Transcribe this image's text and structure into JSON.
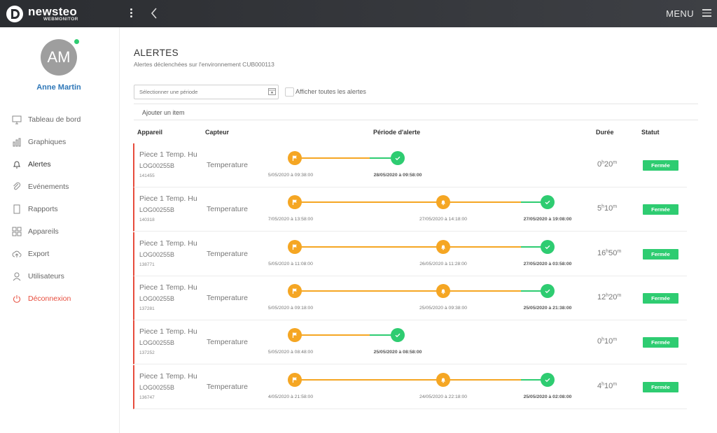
{
  "topbar": {
    "brand": "newsteo",
    "brand_sub": "WEBMONITOR",
    "menu_label": "MENU"
  },
  "user": {
    "initials": "AM",
    "name": "Anne Martin"
  },
  "nav": [
    {
      "label": "Tableau de bord",
      "icon": "monitor-icon"
    },
    {
      "label": "Graphiques",
      "icon": "bar-chart-icon"
    },
    {
      "label": "Alertes",
      "icon": "bell-icon"
    },
    {
      "label": "Evénements",
      "icon": "paperclip-icon"
    },
    {
      "label": "Rapports",
      "icon": "document-icon"
    },
    {
      "label": "Appareils",
      "icon": "grid-icon"
    },
    {
      "label": "Export",
      "icon": "cloud-upload-icon"
    },
    {
      "label": "Utilisateurs",
      "icon": "user-icon"
    },
    {
      "label": "Déconnexion",
      "icon": "power-icon"
    }
  ],
  "page": {
    "title": "ALERTES",
    "subtitle": "Alertes déclenchées sur l'environnement CUB000113"
  },
  "filters": {
    "period_placeholder": "Sélectionner une période",
    "show_all_label": "Afficher toutes les alertes",
    "show_all_checked": false,
    "add_item_label": "Ajouter un item"
  },
  "table": {
    "headers": {
      "device": "Appareil",
      "sensor": "Capteur",
      "period": "Période d'alerte",
      "duration": "Durée",
      "status": "Statut"
    },
    "rows": [
      {
        "device": "Piece 1 Temp. Hu",
        "log": "LOG00255B",
        "id": "141455",
        "sensor": "Temperature",
        "start": "5/05/2020 à 09:38:00",
        "mid": "",
        "end": "28/05/2020 à 09:58:00",
        "dur_h": "0",
        "dur_m": "20",
        "status": "Fermée"
      },
      {
        "device": "Piece 1 Temp. Hu",
        "log": "LOG00255B",
        "id": "140318",
        "sensor": "Temperature",
        "start": "7/05/2020 à 13:58:00",
        "mid": "27/05/2020 à 14:18:00",
        "end": "27/05/2020 à 19:08:00",
        "dur_h": "5",
        "dur_m": "10",
        "status": "Fermée"
      },
      {
        "device": "Piece 1 Temp. Hu",
        "log": "LOG00255B",
        "id": "138771",
        "sensor": "Temperature",
        "start": "5/05/2020 à 11:08:00",
        "mid": "26/05/2020 à 11:28:00",
        "end": "27/05/2020 à 03:58:00",
        "dur_h": "16",
        "dur_m": "50",
        "status": "Fermée"
      },
      {
        "device": "Piece 1 Temp. Hu",
        "log": "LOG00255B",
        "id": "137281",
        "sensor": "Temperature",
        "start": "5/05/2020 à 09:18:00",
        "mid": "25/05/2020 à 09:38:00",
        "end": "25/05/2020 à 21:38:00",
        "dur_h": "12",
        "dur_m": "20",
        "status": "Fermée"
      },
      {
        "device": "Piece 1 Temp. Hu",
        "log": "LOG00255B",
        "id": "137252",
        "sensor": "Temperature",
        "start": "5/05/2020 à 08:48:00",
        "mid": "",
        "end": "25/05/2020 à 08:58:00",
        "dur_h": "0",
        "dur_m": "10",
        "status": "Fermée"
      },
      {
        "device": "Piece 1 Temp. Hu",
        "log": "LOG00255B",
        "id": "136747",
        "sensor": "Temperature",
        "start": "4/05/2020 à 21:58:00",
        "mid": "24/05/2020 à 22:18:00",
        "end": "25/05/2020 à 02:08:00",
        "dur_h": "4",
        "dur_m": "10",
        "status": "Fermée"
      }
    ]
  },
  "colors": {
    "alert": "#f5a623",
    "closed": "#2ecc71",
    "accent": "#2e77b8",
    "danger": "#e74c3c"
  }
}
